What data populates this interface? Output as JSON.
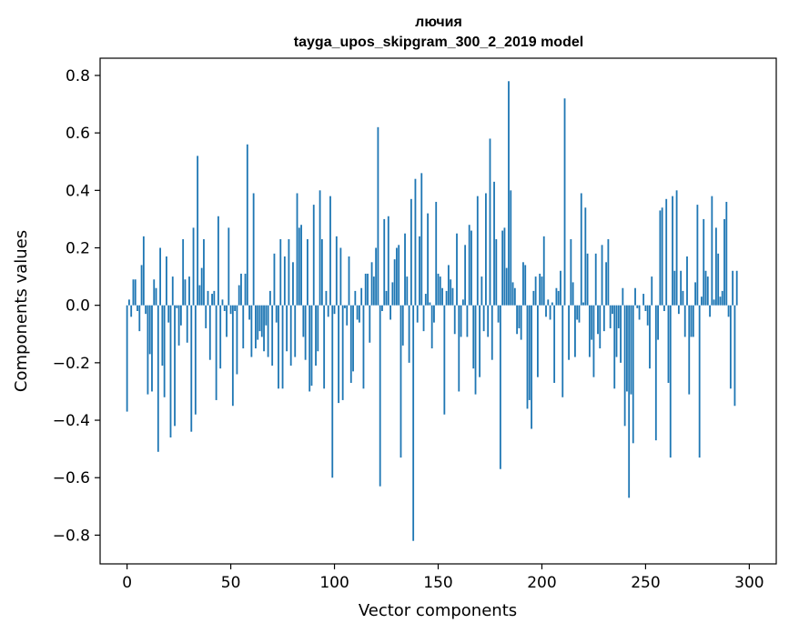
{
  "chart_data": {
    "type": "bar",
    "title": "лючия",
    "subtitle": "tayga_upos_skipgram_300_2_2019 model",
    "xlabel": "Vector components",
    "ylabel": "Components values",
    "xlim": [
      -13,
      313
    ],
    "ylim": [
      -0.9,
      0.86
    ],
    "xticks": [
      0,
      50,
      100,
      150,
      200,
      250,
      300
    ],
    "xtick_labels": [
      "0",
      "50",
      "100",
      "150",
      "200",
      "250",
      "300"
    ],
    "yticks": [
      -0.8,
      -0.6,
      -0.4,
      -0.2,
      0.0,
      0.2,
      0.4,
      0.6,
      0.8
    ],
    "ytick_labels": [
      "−0.8",
      "−0.6",
      "−0.4",
      "−0.2",
      "0.0",
      "0.2",
      "0.4",
      "0.6",
      "0.8"
    ],
    "bar_color": "#1f77b4",
    "grid": false,
    "legend": false,
    "values": [
      -0.37,
      0.02,
      -0.04,
      0.09,
      0.09,
      -0.02,
      -0.09,
      0.14,
      0.24,
      -0.03,
      -0.31,
      -0.17,
      -0.3,
      0.09,
      0.06,
      -0.51,
      0.2,
      -0.21,
      -0.32,
      0.17,
      -0.06,
      -0.46,
      0.1,
      -0.42,
      -0.01,
      -0.14,
      -0.07,
      0.23,
      0.09,
      -0.13,
      0.1,
      -0.44,
      0.27,
      -0.38,
      0.52,
      0.07,
      0.13,
      0.23,
      -0.08,
      0.05,
      -0.19,
      0.04,
      0.05,
      -0.33,
      0.31,
      -0.22,
      0.02,
      -0.02,
      -0.11,
      0.27,
      -0.03,
      -0.35,
      -0.02,
      -0.24,
      0.07,
      0.11,
      -0.15,
      0.11,
      0.56,
      -0.05,
      -0.18,
      0.39,
      -0.15,
      -0.12,
      -0.09,
      -0.11,
      -0.16,
      -0.07,
      -0.18,
      0.05,
      -0.21,
      0.18,
      -0.06,
      -0.29,
      0.23,
      -0.29,
      0.17,
      -0.16,
      0.23,
      -0.21,
      0.15,
      -0.18,
      0.39,
      0.27,
      0.28,
      -0.11,
      -0.19,
      0.23,
      -0.3,
      -0.28,
      0.35,
      -0.21,
      -0.16,
      0.4,
      0.23,
      -0.29,
      0.05,
      -0.04,
      0.38,
      -0.6,
      -0.03,
      0.24,
      -0.34,
      0.2,
      -0.33,
      -0.01,
      -0.07,
      0.17,
      -0.27,
      -0.23,
      0.05,
      -0.05,
      -0.06,
      0.06,
      -0.29,
      0.11,
      0.11,
      -0.13,
      0.15,
      0.1,
      0.2,
      0.62,
      -0.63,
      -0.02,
      0.3,
      0.05,
      0.31,
      -0.05,
      0.08,
      0.16,
      0.2,
      0.21,
      -0.53,
      -0.14,
      0.25,
      0.1,
      -0.2,
      0.37,
      -0.82,
      0.44,
      -0.06,
      0.24,
      0.46,
      -0.09,
      0.04,
      0.32,
      0.01,
      -0.15,
      -0.06,
      0.36,
      0.11,
      0.1,
      0.06,
      -0.38,
      0.05,
      0.14,
      0.09,
      0.06,
      -0.1,
      0.25,
      -0.3,
      -0.11,
      0.02,
      0.21,
      -0.11,
      0.28,
      0.26,
      -0.22,
      -0.31,
      0.38,
      -0.25,
      0.1,
      -0.09,
      0.39,
      -0.11,
      0.58,
      -0.19,
      0.43,
      0.23,
      -0.06,
      -0.57,
      0.26,
      0.27,
      0.13,
      0.78,
      0.4,
      0.08,
      0.06,
      -0.1,
      -0.08,
      -0.12,
      0.15,
      0.14,
      -0.36,
      -0.33,
      -0.43,
      0.05,
      0.1,
      -0.25,
      0.11,
      0.1,
      0.24,
      -0.04,
      0.02,
      -0.05,
      0.01,
      -0.27,
      0.06,
      0.05,
      0.12,
      -0.32,
      0.72,
      0.0,
      -0.19,
      0.23,
      0.08,
      -0.18,
      -0.05,
      -0.06,
      0.39,
      0.01,
      0.34,
      0.18,
      -0.18,
      -0.12,
      -0.25,
      0.18,
      -0.1,
      -0.15,
      0.21,
      -0.09,
      0.15,
      0.23,
      -0.08,
      -0.03,
      -0.29,
      -0.18,
      -0.08,
      -0.2,
      0.06,
      -0.42,
      -0.3,
      -0.67,
      -0.31,
      -0.48,
      0.06,
      -0.01,
      -0.05,
      0.0,
      0.04,
      -0.02,
      -0.07,
      -0.22,
      0.1,
      0.0,
      -0.47,
      -0.12,
      0.33,
      0.34,
      -0.02,
      0.37,
      -0.27,
      -0.53,
      0.38,
      0.12,
      0.4,
      -0.03,
      0.12,
      0.05,
      -0.11,
      0.17,
      -0.31,
      -0.11,
      -0.11,
      0.08,
      0.35,
      -0.53,
      0.03,
      0.3,
      0.12,
      0.1,
      -0.04,
      0.38,
      0.02,
      0.27,
      0.18,
      0.03,
      0.05,
      0.3,
      0.36,
      -0.04,
      -0.29,
      0.12,
      -0.35,
      0.12
    ]
  }
}
